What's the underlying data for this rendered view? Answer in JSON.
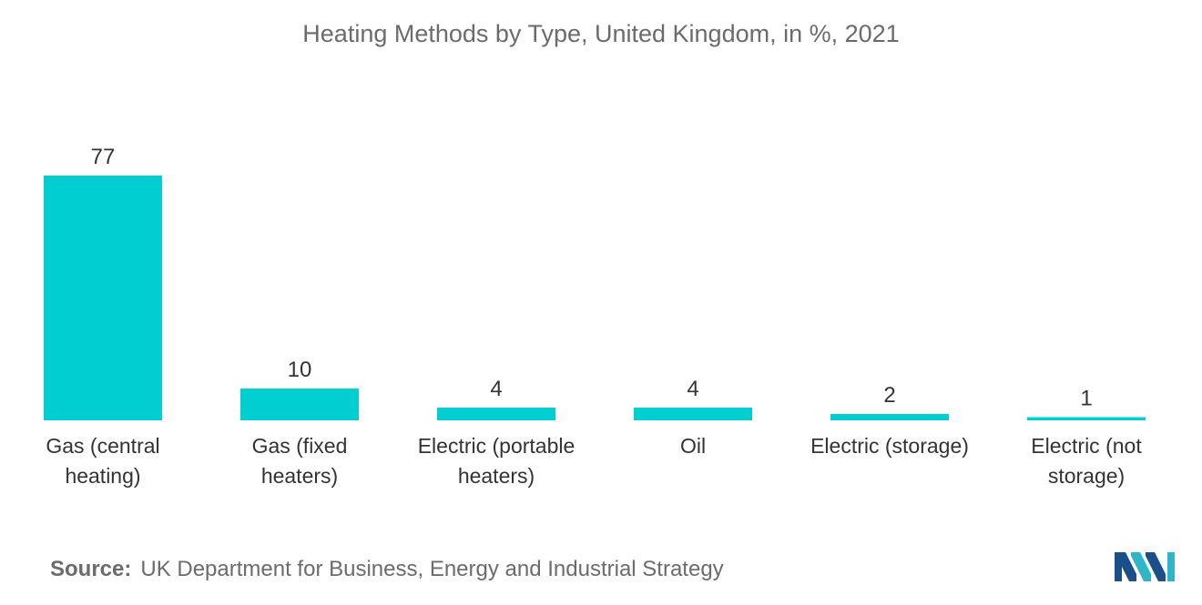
{
  "chart_data": {
    "type": "bar",
    "title": "Heating Methods by Type, United Kingdom, in %, 2021",
    "categories": [
      [
        "Gas (central",
        "heating)"
      ],
      [
        "Gas (fixed",
        "heaters)"
      ],
      [
        "Electric (portable",
        "heaters)"
      ],
      [
        "Oil"
      ],
      [
        "Electric (storage)"
      ],
      [
        "Electric (not",
        "storage)"
      ]
    ],
    "values": [
      77,
      10,
      4,
      4,
      2,
      1
    ],
    "value_labels": [
      "77",
      "10",
      "4",
      "4",
      "2",
      "1"
    ],
    "ylim": [
      0,
      77
    ],
    "grid": false,
    "legend": "none",
    "bar_color": "#00CED1",
    "text_color": "#333333"
  },
  "source": {
    "label": "Source:",
    "text": "UK Department for Business, Energy and Industrial Strategy"
  },
  "colors": {
    "logo_dark": "#1B4F8A",
    "logo_light": "#2FB5C8"
  }
}
